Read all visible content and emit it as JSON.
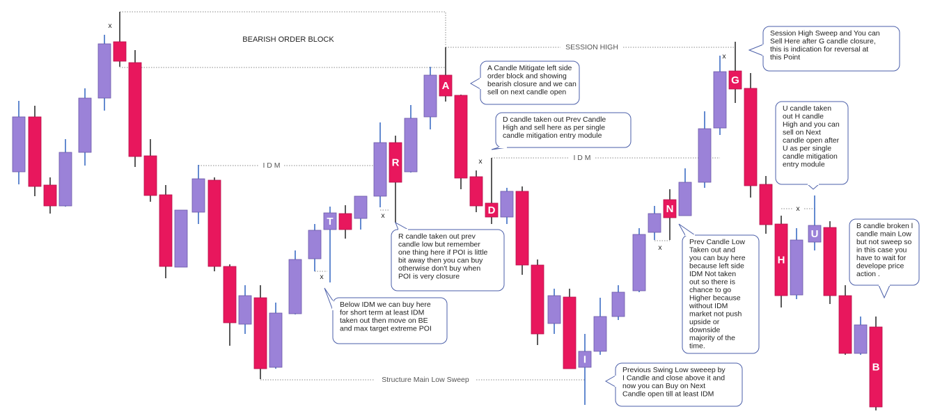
{
  "labels": {
    "title": "BEARISH ORDER BLOCK",
    "session_high": "SESSION HIGH",
    "idm_left": "I D M",
    "idm_right": "I D M",
    "low_sweep": "Structure Main Low Sweep"
  },
  "markers": [
    "x",
    "x",
    "x",
    "x",
    "x",
    "x",
    "x"
  ],
  "candle_letters": [
    "T",
    "R",
    "A",
    "D",
    "I",
    "N",
    "G",
    "H",
    "U",
    "B"
  ],
  "notes": [
    {
      "lines": [
        "A Candle Mitigate left side",
        "order block and showing",
        "bearish closure and we can",
        "sell on next candle open"
      ]
    },
    {
      "lines": [
        "D candle taken out Prev Candle",
        "High and sell here as per single",
        "candle mitigation entry module"
      ]
    },
    {
      "lines": [
        "Session High Sweep and  You can",
        "Sell Here after G candle closure,",
        "this is indication for reversal at",
        "this Point"
      ]
    },
    {
      "lines": [
        "R candle taken out prev",
        "candle low but remember",
        "one thing here if POI is little",
        "bit away then you can buy",
        "otherwise don't buy when",
        "POI is very closure"
      ]
    },
    {
      "lines": [
        "Below IDM we can buy here",
        "for short term at least IDM",
        "taken out then move on BE",
        "and max target extreme POI"
      ]
    },
    {
      "lines": [
        "Prev Candle Low",
        "Taken out and",
        "you can buy here",
        "because left side",
        "IDM Not taken",
        "out so there is",
        "chance to go",
        "Higher because",
        "without IDM",
        "market not push",
        "upside or",
        "downside",
        "majority of the",
        "time."
      ]
    },
    {
      "lines": [
        "U candle taken",
        "out  H candle",
        "High and you can",
        "sell on Next",
        "candle open after",
        "U as per single",
        "candle mitigation",
        "entry module"
      ]
    },
    {
      "lines": [
        "B candle broken l",
        "candle main Low",
        "but not sweep so",
        "in this case  you",
        "have to wait for",
        "develope price",
        "action ."
      ]
    },
    {
      "lines": [
        "Previous Swing Low sweeep by",
        "I Candle and close above it and",
        "now you can Buy on Next",
        "Candle open till at least IDM"
      ]
    }
  ]
}
